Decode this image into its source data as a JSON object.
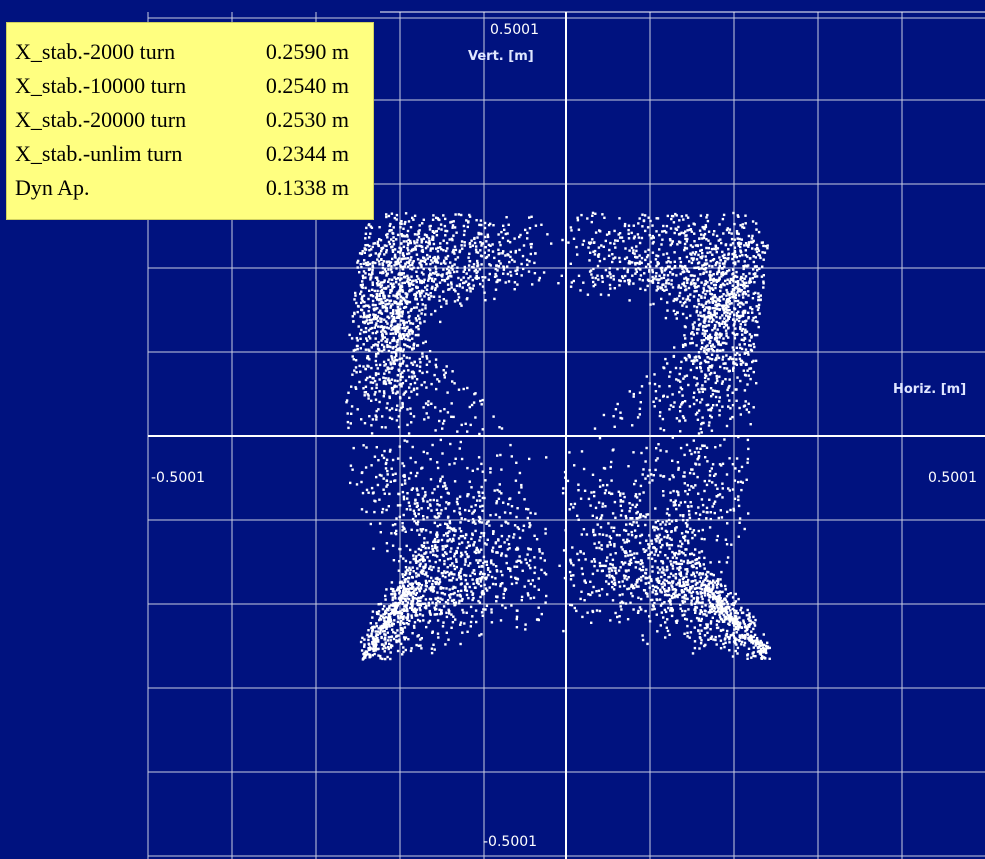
{
  "chart_data": {
    "type": "scatter",
    "title": "",
    "xlabel": "Horiz. [m]",
    "ylabel": "Vert. [m]",
    "xlim": [
      -0.5001,
      0.5001
    ],
    "ylim": [
      -0.5001,
      0.5001
    ],
    "x_tick_labels": [
      "-0.5001",
      "0.5001"
    ],
    "y_tick_labels": [
      "0.5001",
      "-0.5001"
    ],
    "grid": true,
    "marker_color": "#ffffff",
    "background_color": "#00127f",
    "grid_color": "#c8cce0",
    "approx_extent": {
      "x_min": -0.28,
      "x_max": 0.25,
      "y_min": -0.27,
      "y_max": 0.27
    },
    "point_count_estimate": 6000,
    "stats": [
      {
        "label": "X_stab.-2000 turn",
        "value": "0.2590 m"
      },
      {
        "label": "X_stab.-10000 turn",
        "value": "0.2540 m"
      },
      {
        "label": "X_stab.-20000 turn",
        "value": "0.2530 m"
      },
      {
        "label": "X_stab.-unlim turn",
        "value": "0.2344 m"
      },
      {
        "label": "Dyn Ap.",
        "value": "0.1338 m"
      }
    ]
  }
}
